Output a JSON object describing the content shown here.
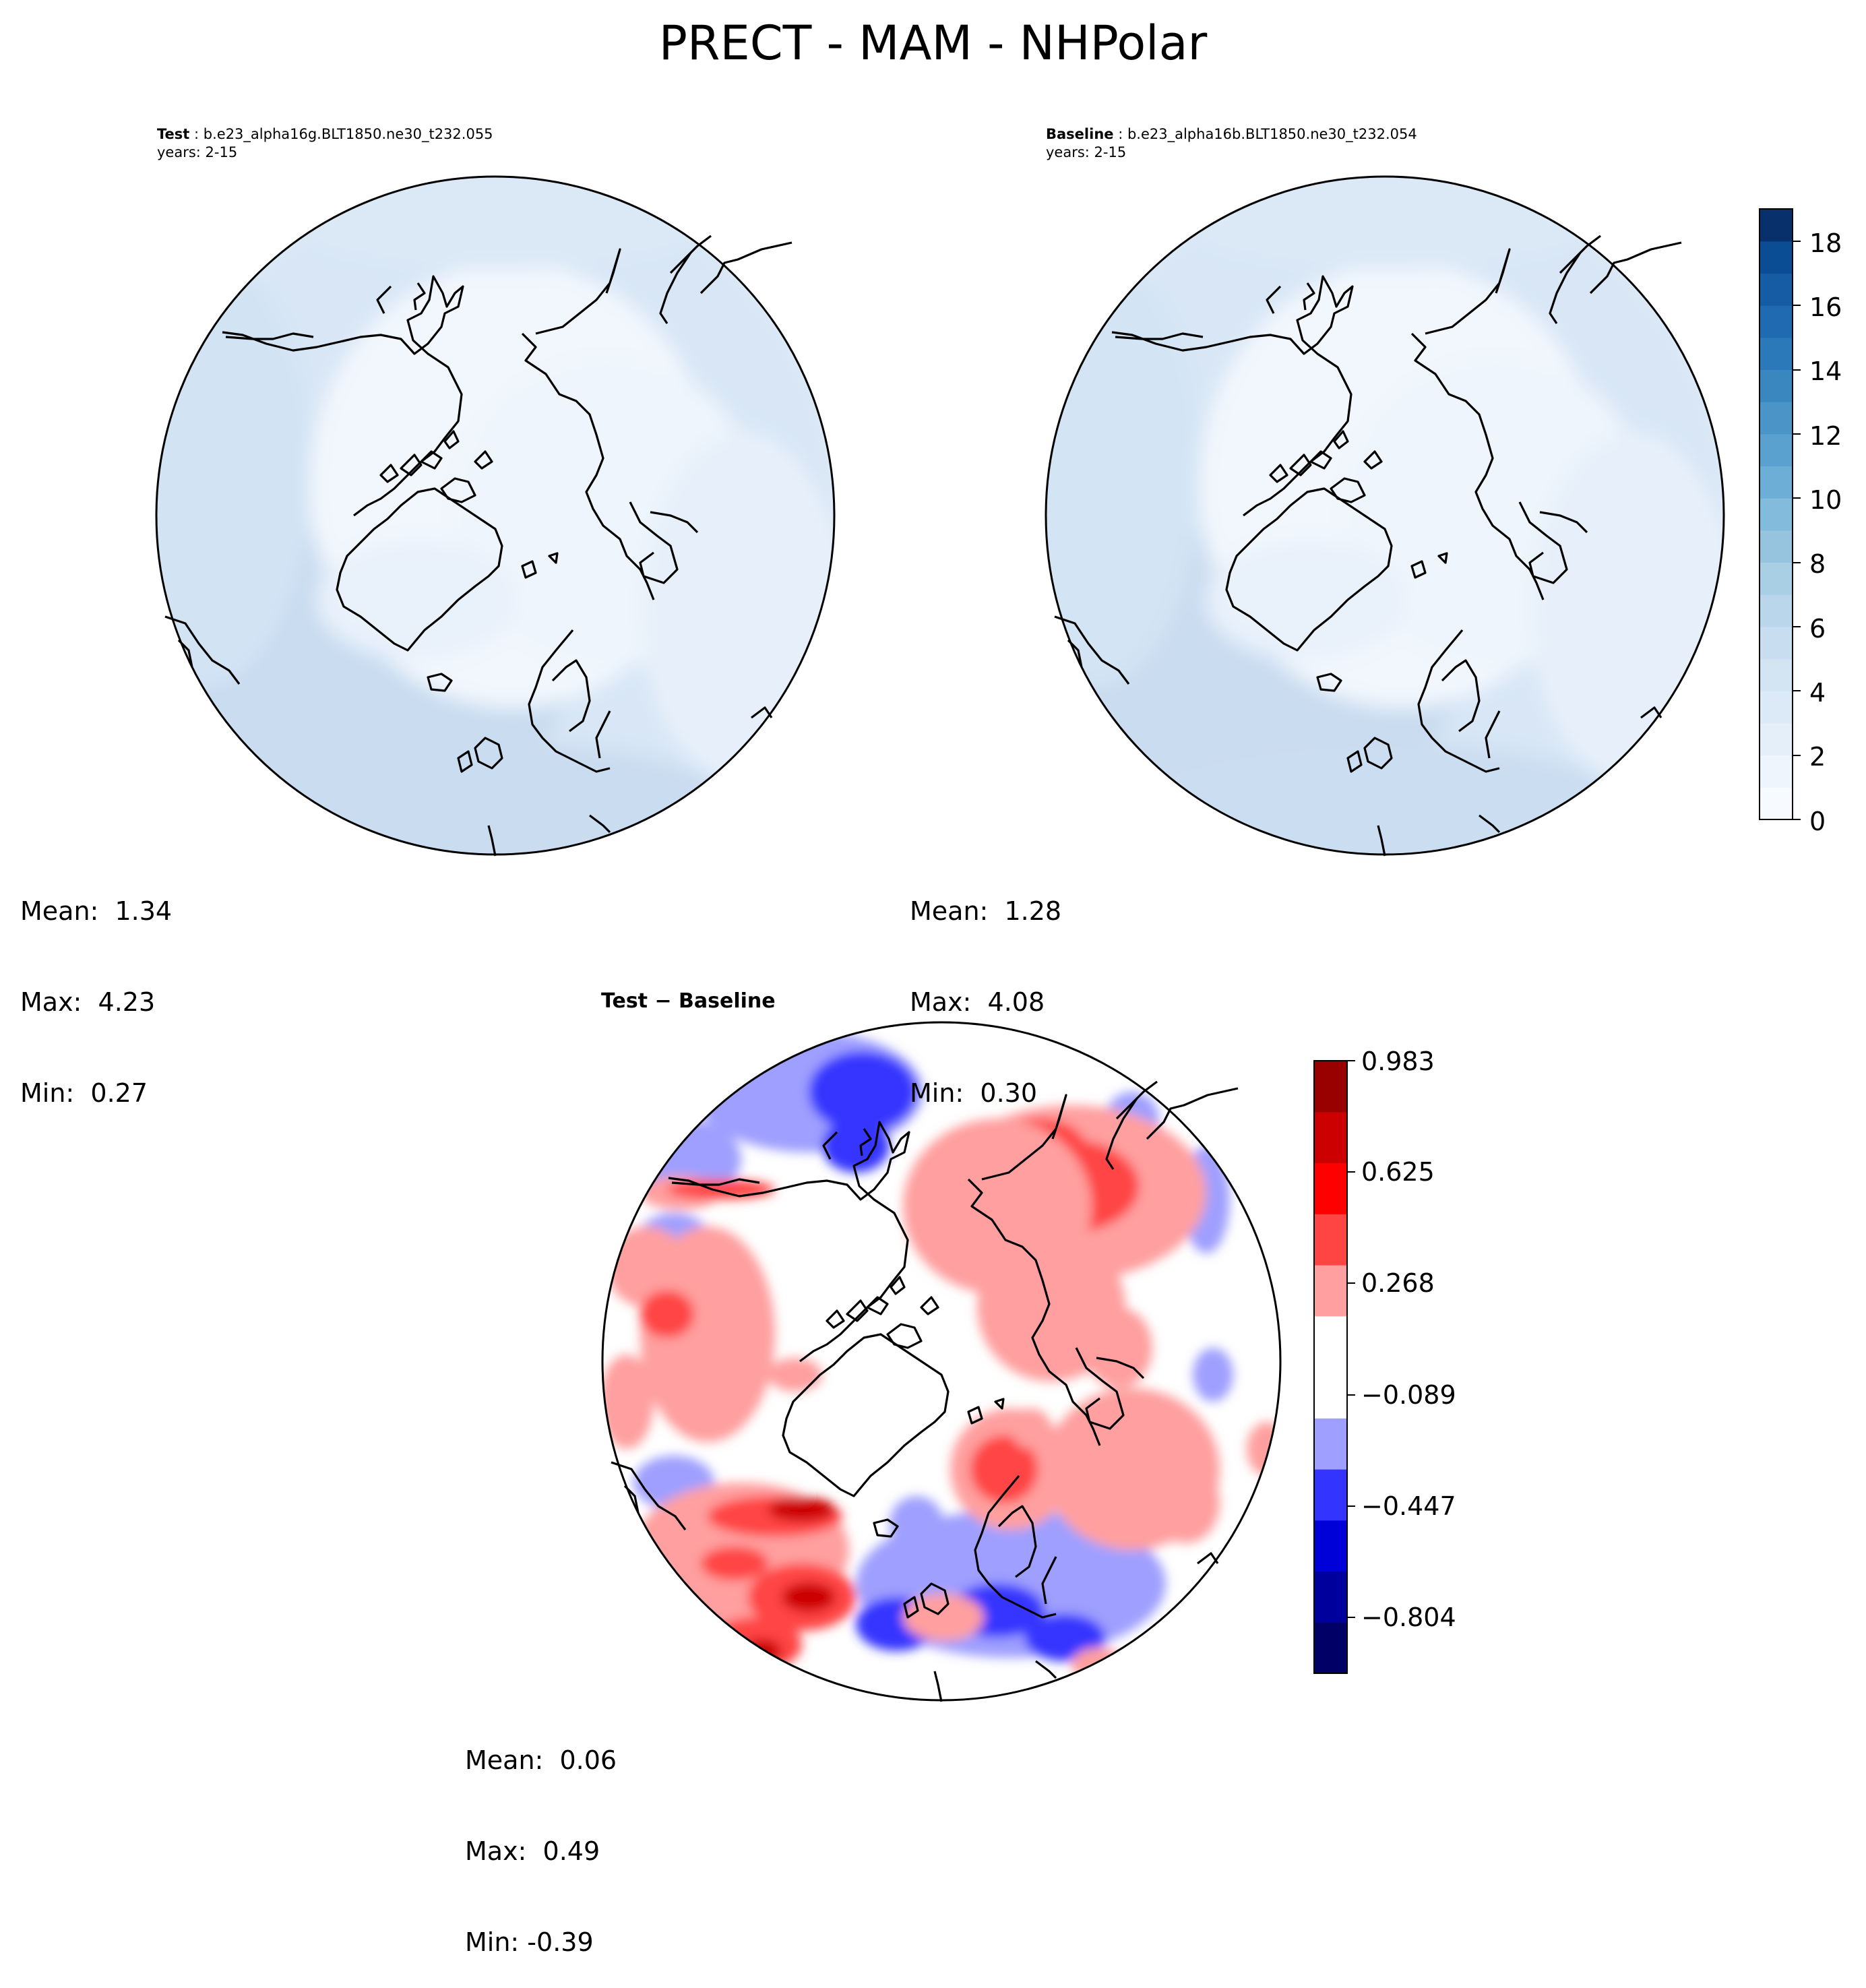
{
  "title": "PRECT - MAM - NHPolar",
  "panels": {
    "test": {
      "label": "Test",
      "case": "b.e23_alpha16g.BLT1850.ne30_t232.055",
      "years": "years: 2-15",
      "stats": {
        "mean": "Mean:  1.34",
        "max": "Max:  4.23",
        "min": "Min:  0.27"
      }
    },
    "baseline": {
      "label": "Baseline",
      "case": "b.e23_alpha16b.BLT1850.ne30_t232.054",
      "years": "years: 2-15",
      "stats": {
        "mean": "Mean:  1.28",
        "max": "Max:  4.08",
        "min": "Min:  0.30"
      }
    },
    "diff": {
      "label": "Test − Baseline",
      "stats": {
        "mean": "Mean:  0.06",
        "max": "Max:  0.49",
        "min": "Min: -0.39"
      }
    }
  },
  "colorbars": {
    "blues": {
      "ticks": [
        "0",
        "2",
        "4",
        "6",
        "8",
        "10",
        "12",
        "14",
        "16",
        "18"
      ],
      "range": [
        0,
        19
      ],
      "levels": 19,
      "colors": [
        "#f7fbff",
        "#eef5fc",
        "#e5eff9",
        "#dce9f6",
        "#d3e4f3",
        "#c9ddf0",
        "#bad6eb",
        "#a9cfe5",
        "#96c4df",
        "#82bbdb",
        "#6daed6",
        "#5aa1cf",
        "#4a94c8",
        "#3a87c0",
        "#2b79b8",
        "#1f6ab0",
        "#155ca5",
        "#0b4d94",
        "#08306b"
      ]
    },
    "diverging": {
      "ticks": [
        "0.983",
        "0.625",
        "0.268",
        "−0.089",
        "−0.447",
        "−0.804"
      ],
      "tick_values": [
        0.983,
        0.625,
        0.268,
        -0.089,
        -0.447,
        -0.804
      ],
      "range": [
        -0.983,
        0.983
      ],
      "colors_bottom_to_top": [
        "#000066",
        "#00009d",
        "#0000d8",
        "#3434ff",
        "#9f9fff",
        "#ffffff",
        "#ffffff",
        "#ff9f9f",
        "#ff4444",
        "#ff0000",
        "#cc0000",
        "#990000"
      ]
    }
  }
}
